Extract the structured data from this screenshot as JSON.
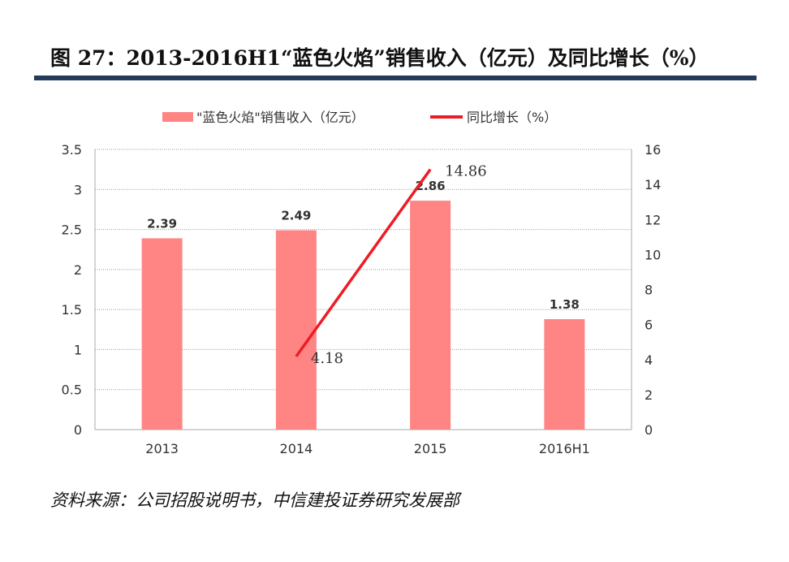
{
  "title": "图 27：2013-2016H1“蓝色火焰”销售收入（亿元）及同比增长（%）",
  "source": "资料来源：公司招股说明书，中信建投证券研究发展部",
  "chart_data": {
    "type": "bar",
    "title": "",
    "categories": [
      "2013",
      "2014",
      "2015",
      "2016H1"
    ],
    "series": [
      {
        "name": "\"蓝色火焰\"销售收入（亿元）",
        "type": "bar",
        "axis": "left",
        "color": "#ff8585",
        "values": [
          2.39,
          2.49,
          2.86,
          1.38
        ],
        "labels": [
          "2.39",
          "2.49",
          "2.86",
          "1.38"
        ]
      },
      {
        "name": "同比增长（%）",
        "type": "line",
        "axis": "right",
        "color": "#ee1c25",
        "values": [
          null,
          4.18,
          14.86,
          null
        ],
        "labels": [
          "",
          "4.18",
          "14.86",
          ""
        ]
      }
    ],
    "left_axis": {
      "ylim": [
        0,
        3.5
      ],
      "ticks": [
        "0",
        "0.5",
        "1",
        "1.5",
        "2",
        "2.5",
        "3",
        "3.5"
      ]
    },
    "right_axis": {
      "ylim": [
        0,
        16
      ],
      "ticks": [
        "0",
        "2",
        "4",
        "6",
        "8",
        "10",
        "12",
        "14",
        "16"
      ]
    },
    "grid": true,
    "legend": "top"
  }
}
